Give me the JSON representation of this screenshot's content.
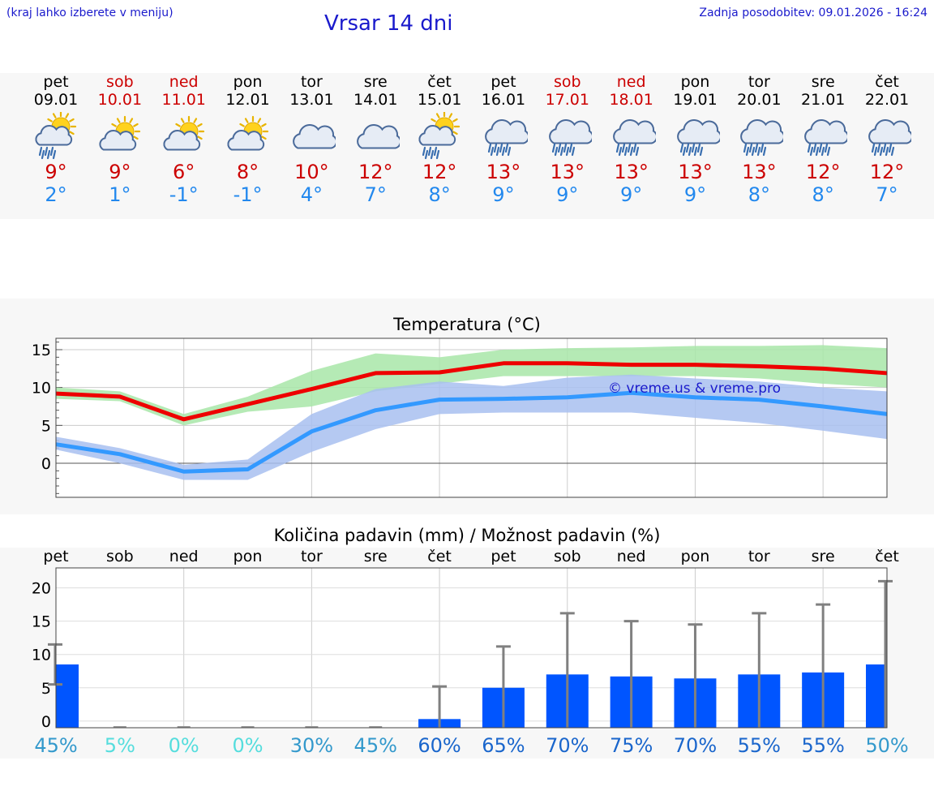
{
  "header": {
    "hint": "(kraj lahko izberete v meniju)",
    "title": "Vrsar 14 dni",
    "updated": "Zadnja posodobitev: 09.01.2026 - 16:24"
  },
  "forecast": [
    {
      "day": "pet",
      "date": "09.01",
      "tmax": "9°",
      "tmin": "2°",
      "icon": "sun-cloud-rain-icon",
      "weekend": false
    },
    {
      "day": "sob",
      "date": "10.01",
      "tmax": "9°",
      "tmin": "1°",
      "icon": "sun-cloud-icon",
      "weekend": true
    },
    {
      "day": "ned",
      "date": "11.01",
      "tmax": "6°",
      "tmin": "-1°",
      "icon": "sun-cloud-icon",
      "weekend": true
    },
    {
      "day": "pon",
      "date": "12.01",
      "tmax": "8°",
      "tmin": "-1°",
      "icon": "sun-cloud-icon",
      "weekend": false
    },
    {
      "day": "tor",
      "date": "13.01",
      "tmax": "10°",
      "tmin": "4°",
      "icon": "cloud-icon",
      "weekend": false
    },
    {
      "day": "sre",
      "date": "14.01",
      "tmax": "12°",
      "tmin": "7°",
      "icon": "cloud-icon",
      "weekend": false
    },
    {
      "day": "čet",
      "date": "15.01",
      "tmax": "12°",
      "tmin": "8°",
      "icon": "sun-cloud-rain-icon",
      "weekend": false
    },
    {
      "day": "pet",
      "date": "16.01",
      "tmax": "13°",
      "tmin": "9°",
      "icon": "cloud-rain-icon",
      "weekend": false
    },
    {
      "day": "sob",
      "date": "17.01",
      "tmax": "13°",
      "tmin": "9°",
      "icon": "cloud-rain-icon",
      "weekend": true
    },
    {
      "day": "ned",
      "date": "18.01",
      "tmax": "13°",
      "tmin": "9°",
      "icon": "cloud-rain-icon",
      "weekend": true
    },
    {
      "day": "pon",
      "date": "19.01",
      "tmax": "13°",
      "tmin": "9°",
      "icon": "cloud-rain-icon",
      "weekend": false
    },
    {
      "day": "tor",
      "date": "20.01",
      "tmax": "13°",
      "tmin": "8°",
      "icon": "cloud-rain-icon",
      "weekend": false
    },
    {
      "day": "sre",
      "date": "21.01",
      "tmax": "12°",
      "tmin": "8°",
      "icon": "cloud-rain-icon",
      "weekend": false
    },
    {
      "day": "čet",
      "date": "22.01",
      "tmax": "12°",
      "tmin": "7°",
      "icon": "cloud-rain-icon",
      "weekend": false
    }
  ],
  "colors": {
    "title_blue": "#1a1acc",
    "max_red": "#ee0000",
    "min_blue": "#3399ff",
    "max_band": "#a8e6a8",
    "min_band": "#a8c0f0",
    "bar_blue": "#0055ff",
    "error_gray": "#808080"
  },
  "chart_data": [
    {
      "type": "line",
      "title": "Temperatura (°C)",
      "ylabel": "°C",
      "ylim": [
        -4.5,
        16.5
      ],
      "yticks": [
        0,
        5,
        10,
        15
      ],
      "x": [
        0,
        1,
        2,
        3,
        4,
        5,
        6,
        7,
        8,
        9,
        10,
        11,
        12,
        13
      ],
      "watermark": "© vreme.us & vreme.pro",
      "series": [
        {
          "name": "max",
          "values": [
            9.2,
            8.8,
            5.8,
            7.8,
            9.8,
            11.9,
            12.0,
            13.2,
            13.2,
            13.0,
            13.0,
            12.8,
            12.5,
            11.9
          ]
        },
        {
          "name": "max_band_low",
          "values": [
            8.5,
            8.2,
            5.0,
            6.8,
            7.5,
            9.5,
            10.5,
            11.5,
            11.5,
            11.5,
            11.5,
            11.2,
            10.5,
            10.0
          ]
        },
        {
          "name": "max_band_high",
          "values": [
            10.0,
            9.5,
            6.5,
            8.8,
            12.2,
            14.5,
            14.0,
            15.0,
            15.2,
            15.3,
            15.5,
            15.5,
            15.6,
            15.2
          ]
        },
        {
          "name": "min",
          "values": [
            2.5,
            1.2,
            -1.1,
            -0.8,
            4.2,
            7.0,
            8.4,
            8.5,
            8.7,
            9.3,
            8.7,
            8.4,
            7.5,
            6.5
          ]
        },
        {
          "name": "min_band_low",
          "values": [
            1.8,
            0.0,
            -2.2,
            -2.2,
            1.5,
            4.5,
            6.5,
            6.7,
            6.7,
            6.7,
            6.0,
            5.3,
            4.3,
            3.2
          ]
        },
        {
          "name": "min_band_high",
          "values": [
            3.5,
            2.0,
            -0.2,
            0.5,
            6.5,
            9.8,
            10.8,
            10.2,
            11.3,
            11.7,
            11.2,
            10.8,
            10.0,
            9.5
          ]
        }
      ]
    },
    {
      "type": "bar",
      "title": "Količina padavin (mm) / Možnost padavin (%)",
      "categories": [
        "pet",
        "sob",
        "ned",
        "pon",
        "tor",
        "sre",
        "čet",
        "pet",
        "sob",
        "ned",
        "pon",
        "tor",
        "sre",
        "čet"
      ],
      "ylim": [
        -1,
        23
      ],
      "yticks": [
        0,
        5,
        10,
        15,
        20
      ],
      "values": [
        8.5,
        0,
        0,
        0,
        0,
        0,
        0.3,
        5.0,
        7.0,
        6.7,
        6.4,
        7.0,
        7.3,
        8.5
      ],
      "error_low": [
        5.5,
        0,
        0,
        0,
        0,
        0,
        0,
        0,
        0,
        0,
        0,
        0,
        0,
        0
      ],
      "error_high": [
        11.5,
        0,
        0,
        0,
        0,
        0,
        5.2,
        11.2,
        16.2,
        15.0,
        14.5,
        16.2,
        17.5,
        21.0
      ],
      "probabilities": [
        "45%",
        "5%",
        "0%",
        "0%",
        "30%",
        "45%",
        "60%",
        "65%",
        "70%",
        "75%",
        "70%",
        "55%",
        "55%",
        "50%"
      ],
      "probability_colors": [
        "#3399cc",
        "#55dddd",
        "#55dddd",
        "#55dddd",
        "#3399cc",
        "#3399cc",
        "#1a66cc",
        "#1a66cc",
        "#1a66cc",
        "#1a66cc",
        "#1a66cc",
        "#1a66cc",
        "#1a66cc",
        "#3399cc"
      ]
    }
  ]
}
